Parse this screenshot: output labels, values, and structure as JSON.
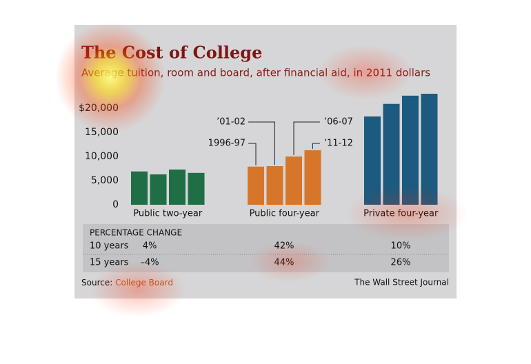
{
  "chart_data": {
    "type": "bar",
    "title": "The Cost of College",
    "subtitle": "Average tuition, room and board, after financial aid, in 2011 dollars",
    "categories": [
      "Public two-year",
      "Public four-year",
      "Private four-year"
    ],
    "colors": [
      "#1f6e45",
      "#d6762b",
      "#1d5a7f"
    ],
    "series": [
      {
        "name": "1996-97",
        "values": [
          6900,
          7900,
          18300
        ]
      },
      {
        "name": "’01-02",
        "values": [
          6300,
          8000,
          20900
        ]
      },
      {
        "name": "’06-07",
        "values": [
          7300,
          10000,
          22600
        ]
      },
      {
        "name": "’11-12",
        "values": [
          6600,
          11300,
          23000
        ]
      }
    ],
    "ylim": [
      0,
      23500
    ],
    "yticks": [
      0,
      {
        "value": 5000,
        "label": "5,000"
      },
      {
        "value": 10000,
        "label": "10,000"
      },
      {
        "value": 15000,
        "label": "15,000"
      },
      {
        "value": 20000,
        "label": "$20,000"
      }
    ],
    "grid": false,
    "callout_category": 1
  },
  "table": {
    "header": "PERCENTAGE CHANGE",
    "rows": [
      [
        "10 years",
        "4%",
        "42%",
        "10%"
      ],
      [
        "15 years",
        "–4%",
        "44%",
        "26%"
      ]
    ]
  },
  "footer": {
    "source_label": "Source:",
    "source": "College Board",
    "credit": "The Wall Street Journal"
  }
}
